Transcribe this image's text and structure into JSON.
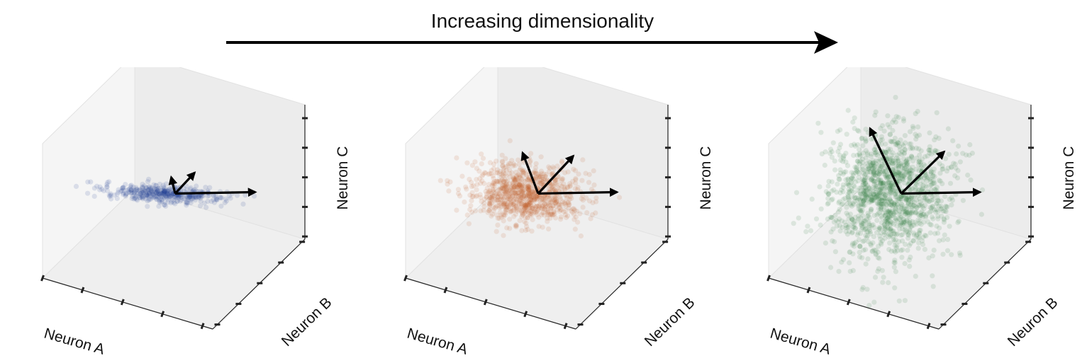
{
  "header": {
    "title": "Increasing dimensionality"
  },
  "chart_data": [
    {
      "type": "scatter",
      "series_color": "#1f3a93",
      "xlabel": "Neuron A",
      "ylabel": "Neuron B",
      "zlabel": "Neuron C",
      "grid": false,
      "spread": {
        "a": 1.0,
        "b": 0.35,
        "c": 0.12
      },
      "point_count": 420,
      "principal_axes": [
        {
          "name": "pc1",
          "dx": 1.0,
          "dy": 0.05,
          "dz": 0.0
        },
        {
          "name": "pc2",
          "dx": 0.25,
          "dy": 0.0,
          "dz": 0.5
        },
        {
          "name": "pc3",
          "dx": -0.05,
          "dy": 0.0,
          "dz": 0.4
        }
      ]
    },
    {
      "type": "scatter",
      "series_color": "#c05a2a",
      "xlabel": "Neuron A",
      "ylabel": "Neuron B",
      "zlabel": "Neuron C",
      "grid": false,
      "spread": {
        "a": 1.0,
        "b": 0.55,
        "c": 0.45
      },
      "point_count": 900,
      "principal_axes": [
        {
          "name": "pc1",
          "dx": 1.0,
          "dy": 0.02,
          "dz": 0.0
        },
        {
          "name": "pc2",
          "dx": 0.45,
          "dy": 0.0,
          "dz": 0.9
        },
        {
          "name": "pc3",
          "dx": -0.2,
          "dy": 0.0,
          "dz": 1.0
        }
      ]
    },
    {
      "type": "scatter",
      "series_color": "#2e7d3a",
      "xlabel": "Neuron A",
      "ylabel": "Neuron B",
      "zlabel": "Neuron C",
      "grid": false,
      "spread": {
        "a": 1.0,
        "b": 0.9,
        "c": 1.0
      },
      "point_count": 1400,
      "principal_axes": [
        {
          "name": "pc1",
          "dx": 1.0,
          "dy": 0.02,
          "dz": 0.0
        },
        {
          "name": "pc2",
          "dx": 0.55,
          "dy": 0.0,
          "dz": 1.0
        },
        {
          "name": "pc3",
          "dx": -0.4,
          "dy": 0.0,
          "dz": 1.6
        }
      ]
    }
  ]
}
